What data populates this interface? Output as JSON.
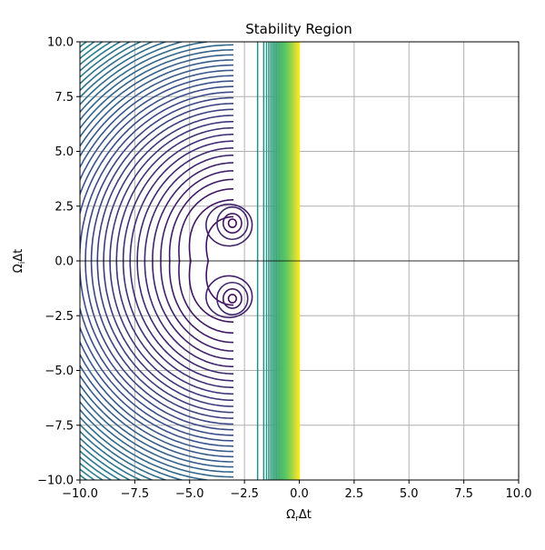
{
  "chart_data": {
    "type": "contour",
    "title": "Stability Region",
    "xlabel_main": "Ω",
    "xlabel_sub": "r",
    "xlabel_tail": "Δt",
    "ylabel_main": "Ω",
    "ylabel_sub": "i",
    "ylabel_tail": "Δt",
    "xlim": [
      -10,
      10
    ],
    "ylim": [
      -10,
      10
    ],
    "xticks": [
      -10,
      -7.5,
      -5,
      -2.5,
      0,
      2.5,
      5,
      7.5,
      10
    ],
    "yticks": [
      -10,
      -7.5,
      -5,
      -2.5,
      0,
      2.5,
      5,
      7.5,
      10
    ],
    "xtick_labels": [
      "−10.0",
      "−7.5",
      "−5.0",
      "−2.5",
      "0.0",
      "2.5",
      "5.0",
      "7.5",
      "10.0"
    ],
    "ytick_labels": [
      "−10.0",
      "−7.5",
      "−5.0",
      "−2.5",
      "0.0",
      "2.5",
      "5.0",
      "7.5",
      "10.0"
    ],
    "grid": true,
    "colormap": "viridis",
    "colormap_colors": [
      "#440154",
      "#3b528b",
      "#21918c",
      "#5ec962",
      "#fde725"
    ],
    "contour_center": [
      -3.0,
      0
    ],
    "focus_points": [
      [
        -3.05,
        1.72
      ],
      [
        -3.05,
        -1.72
      ]
    ],
    "level_count": 46,
    "horizontal_line_y": 0
  }
}
